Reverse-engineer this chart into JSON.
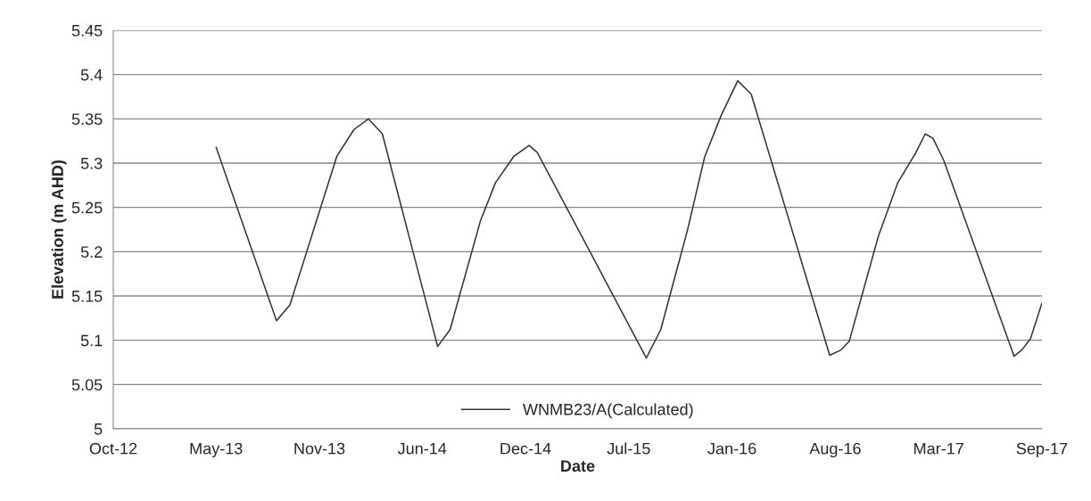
{
  "chart_data": {
    "type": "line",
    "xlabel": "Date",
    "ylabel": "Elevation (m AHD)",
    "series": [
      {
        "name": "WNMB23/A(Calculated)",
        "color": "#333333",
        "x": [
          "2013-05-02",
          "2013-08-27",
          "2013-09-22",
          "2013-12-22",
          "2014-01-24",
          "2014-02-21",
          "2014-03-20",
          "2014-07-05",
          "2014-07-29",
          "2014-09-26",
          "2014-10-25",
          "2014-11-30",
          "2014-12-29",
          "2015-01-14",
          "2015-08-13",
          "2015-09-10",
          "2015-11-01",
          "2015-12-04",
          "2016-01-05",
          "2016-02-06",
          "2016-03-03",
          "2016-08-02",
          "2016-08-24",
          "2016-09-09",
          "2016-11-04",
          "2016-12-12",
          "2017-01-15",
          "2017-02-03",
          "2017-02-18",
          "2017-03-11",
          "2017-07-25",
          "2017-08-09",
          "2017-08-26",
          "2017-09-17"
        ],
        "values": [
          5.318,
          5.122,
          5.14,
          5.308,
          5.338,
          5.35,
          5.333,
          5.093,
          5.112,
          5.235,
          5.278,
          5.308,
          5.32,
          5.312,
          5.08,
          5.112,
          5.225,
          5.307,
          5.354,
          5.393,
          5.378,
          5.083,
          5.089,
          5.099,
          5.217,
          5.278,
          5.311,
          5.333,
          5.328,
          5.303,
          5.082,
          5.089,
          5.102,
          5.142
        ]
      }
    ],
    "xlim": [
      "2012-10-15",
      "2017-09-17"
    ],
    "xticks": [
      {
        "value": "2012-10-15",
        "label": "Oct-12"
      },
      {
        "value": "2013-05-02",
        "label": "May-13"
      },
      {
        "value": "2013-11-18",
        "label": "Nov-13"
      },
      {
        "value": "2014-06-05",
        "label": "Jun-14"
      },
      {
        "value": "2014-12-22",
        "label": "Dec-14"
      },
      {
        "value": "2015-07-10",
        "label": "Jul-15"
      },
      {
        "value": "2016-01-26",
        "label": "Jan-16"
      },
      {
        "value": "2016-08-13",
        "label": "Aug-16"
      },
      {
        "value": "2017-03-01",
        "label": "Mar-17"
      },
      {
        "value": "2017-09-17",
        "label": "Sep-17"
      }
    ],
    "ylim": [
      5,
      5.45
    ],
    "yticks": [
      5,
      5.05,
      5.1,
      5.15,
      5.2,
      5.25,
      5.3,
      5.35,
      5.4,
      5.45
    ],
    "grid": "y",
    "legend": "bottom",
    "marker": "none",
    "line_style": "solid"
  }
}
